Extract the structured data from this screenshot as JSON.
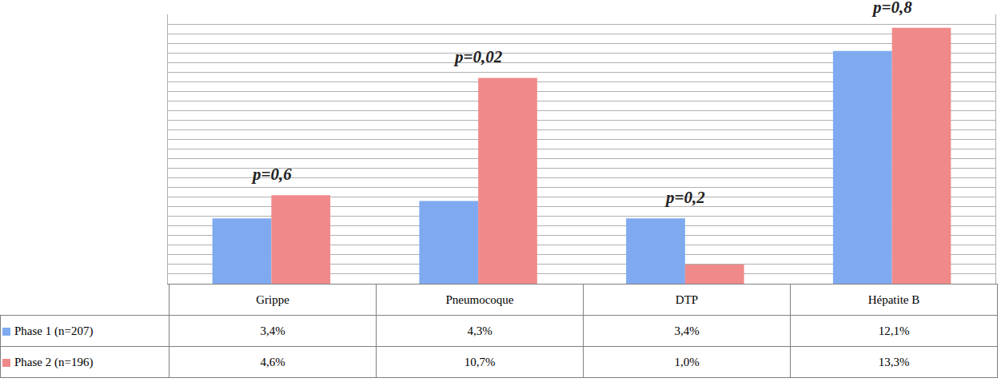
{
  "chart_data": {
    "type": "bar",
    "categories": [
      "Grippe",
      "Pneumocoque",
      "DTP",
      "Hépatite B"
    ],
    "series": [
      {
        "name": "Phase 1 (n=207)",
        "color": "#7faaf0",
        "values": [
          3.4,
          4.3,
          3.4,
          12.1
        ],
        "value_labels": [
          "3,4%",
          "4,3%",
          "3,4%",
          "12,1%"
        ]
      },
      {
        "name": "Phase 2 (n=196)",
        "color": "#f08a8a",
        "values": [
          4.6,
          10.7,
          1.0,
          13.3
        ],
        "value_labels": [
          "4,6%",
          "10,7%",
          "1,0%",
          "13,3%"
        ]
      }
    ],
    "annotations": [
      "p=0,6",
      "p=0,02",
      "p=0,2",
      "p=0,8"
    ],
    "ylim": [
      0,
      14
    ],
    "yticks": [
      0,
      0.5,
      1,
      1.5,
      2,
      2.5,
      3,
      3.5,
      4,
      4.5,
      5,
      5.5,
      6,
      6.5,
      7,
      7.5,
      8,
      8.5,
      9,
      9.5,
      10,
      10.5,
      11,
      11.5,
      12,
      12.5,
      13,
      13.5,
      14
    ],
    "grid": true,
    "data_labels": false,
    "tick_labels": false
  }
}
